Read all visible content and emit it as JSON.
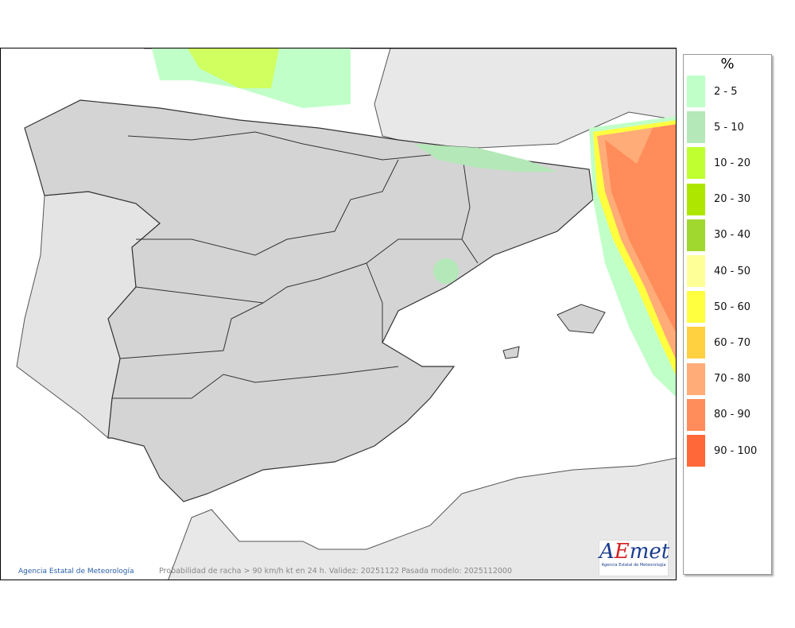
{
  "map": {
    "credit": "Agencia Estatal de Meteorología",
    "caption": "Probabilidad de racha > 90 km/h kt en 24 h. Validez: 20251122 Pasada modelo: 2025112000",
    "logo_text": "AEmet",
    "logo_subtitle": "Agencia Estatal de Meteorología"
  },
  "legend": {
    "title": "%",
    "items": [
      {
        "label": "2 - 5",
        "color": "#c0ffc8"
      },
      {
        "label": "5 - 10",
        "color": "#b4e8b8"
      },
      {
        "label": "10 - 20",
        "color": "#c0ff30"
      },
      {
        "label": "20 - 30",
        "color": "#aee600"
      },
      {
        "label": "30 - 40",
        "color": "#a0d830"
      },
      {
        "label": "40 - 50",
        "color": "#ffff98"
      },
      {
        "label": "50 - 60",
        "color": "#ffff40"
      },
      {
        "label": "60 - 70",
        "color": "#ffd040"
      },
      {
        "label": "70 - 80",
        "color": "#ffac78"
      },
      {
        "label": "80 - 90",
        "color": "#ff8c5a"
      },
      {
        "label": "90 - 100",
        "color": "#ff6838"
      }
    ]
  }
}
